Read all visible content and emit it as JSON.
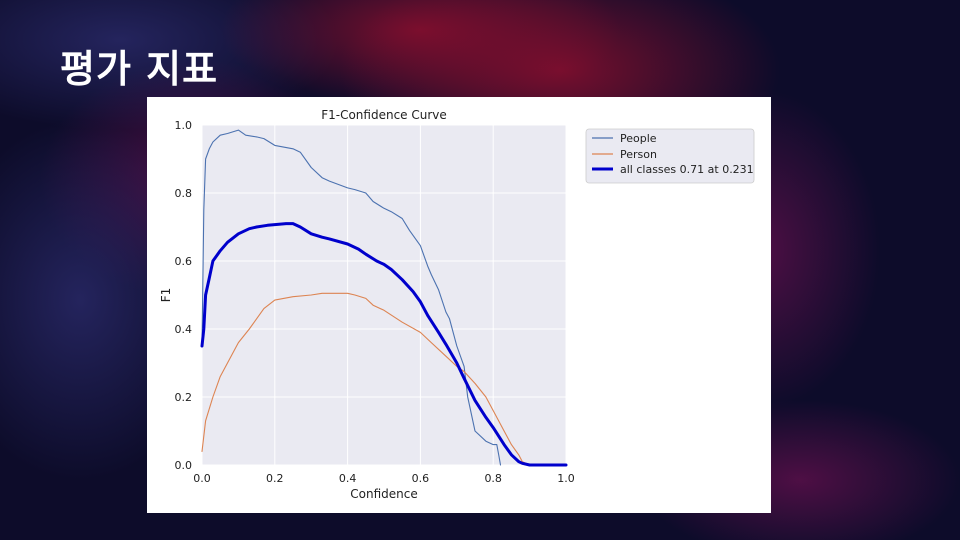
{
  "slide": {
    "title": "평가 지표"
  },
  "colors": {
    "background": "#0d0c2a",
    "plot_bg": "#eaeaf2",
    "people": "#4c72b0",
    "person": "#dd8452",
    "all_classes": "#0000cc"
  },
  "chart_data": {
    "type": "line",
    "title": "F1-Confidence Curve",
    "xlabel": "Confidence",
    "ylabel": "F1",
    "xlim": [
      0,
      1
    ],
    "ylim": [
      0,
      1
    ],
    "xticks": [
      "0.0",
      "0.2",
      "0.4",
      "0.6",
      "0.8",
      "1.0"
    ],
    "yticks": [
      "0.0",
      "0.2",
      "0.4",
      "0.6",
      "0.8",
      "1.0"
    ],
    "grid": true,
    "legend": "outside-right",
    "series": [
      {
        "name": "People",
        "color": "#4c72b0",
        "x": [
          0.0,
          0.005,
          0.01,
          0.02,
          0.03,
          0.05,
          0.07,
          0.1,
          0.12,
          0.15,
          0.17,
          0.2,
          0.25,
          0.27,
          0.3,
          0.33,
          0.35,
          0.4,
          0.42,
          0.45,
          0.47,
          0.5,
          0.52,
          0.55,
          0.57,
          0.6,
          0.62,
          0.63,
          0.65,
          0.67,
          0.68,
          0.7,
          0.72,
          0.73,
          0.75,
          0.78,
          0.8,
          0.81,
          0.815,
          0.82
        ],
        "y": [
          0.35,
          0.75,
          0.9,
          0.93,
          0.95,
          0.97,
          0.975,
          0.985,
          0.97,
          0.965,
          0.96,
          0.94,
          0.93,
          0.92,
          0.875,
          0.845,
          0.835,
          0.815,
          0.81,
          0.8,
          0.775,
          0.755,
          0.745,
          0.725,
          0.69,
          0.645,
          0.585,
          0.56,
          0.515,
          0.45,
          0.43,
          0.35,
          0.29,
          0.2,
          0.1,
          0.07,
          0.06,
          0.06,
          0.03,
          0.0
        ]
      },
      {
        "name": "Person",
        "color": "#dd8452",
        "x": [
          0.0,
          0.01,
          0.03,
          0.05,
          0.08,
          0.1,
          0.13,
          0.15,
          0.17,
          0.2,
          0.25,
          0.3,
          0.33,
          0.35,
          0.4,
          0.42,
          0.45,
          0.47,
          0.5,
          0.55,
          0.6,
          0.63,
          0.67,
          0.7,
          0.72,
          0.75,
          0.78,
          0.8,
          0.83,
          0.85,
          0.87,
          0.88,
          0.9,
          0.95,
          1.0
        ],
        "y": [
          0.04,
          0.13,
          0.2,
          0.26,
          0.32,
          0.36,
          0.4,
          0.43,
          0.46,
          0.485,
          0.495,
          0.5,
          0.505,
          0.505,
          0.505,
          0.5,
          0.49,
          0.47,
          0.455,
          0.42,
          0.39,
          0.36,
          0.32,
          0.29,
          0.275,
          0.24,
          0.2,
          0.16,
          0.1,
          0.06,
          0.03,
          0.01,
          0.0,
          0.0,
          0.0
        ]
      },
      {
        "name": "all classes 0.71 at 0.231",
        "color": "#0000cc",
        "bold": true,
        "x": [
          0.0,
          0.005,
          0.01,
          0.02,
          0.03,
          0.05,
          0.07,
          0.1,
          0.13,
          0.15,
          0.18,
          0.2,
          0.231,
          0.25,
          0.27,
          0.3,
          0.33,
          0.35,
          0.4,
          0.43,
          0.45,
          0.48,
          0.5,
          0.52,
          0.55,
          0.58,
          0.6,
          0.62,
          0.65,
          0.67,
          0.7,
          0.72,
          0.75,
          0.78,
          0.8,
          0.83,
          0.85,
          0.87,
          0.88,
          0.9,
          0.95,
          1.0
        ],
        "y": [
          0.35,
          0.4,
          0.5,
          0.55,
          0.6,
          0.63,
          0.655,
          0.68,
          0.695,
          0.7,
          0.705,
          0.707,
          0.71,
          0.71,
          0.7,
          0.68,
          0.67,
          0.665,
          0.65,
          0.635,
          0.62,
          0.6,
          0.59,
          0.575,
          0.545,
          0.51,
          0.48,
          0.44,
          0.39,
          0.355,
          0.3,
          0.255,
          0.19,
          0.14,
          0.11,
          0.06,
          0.03,
          0.01,
          0.005,
          0.0,
          0.0,
          0.0
        ]
      }
    ]
  }
}
